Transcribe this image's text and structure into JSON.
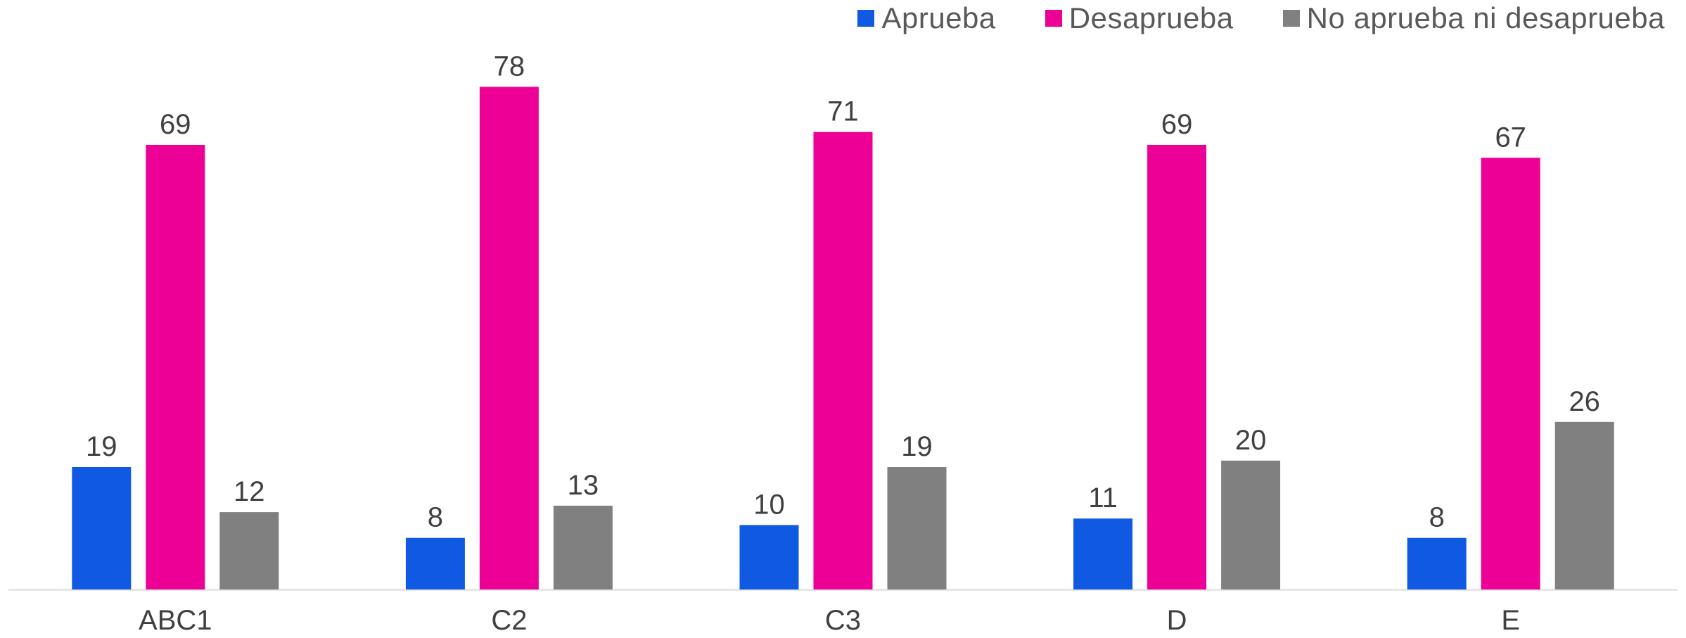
{
  "chart_data": {
    "type": "bar",
    "categories": [
      "ABC1",
      "C2",
      "C3",
      "D",
      "E"
    ],
    "series": [
      {
        "name": "Aprueba",
        "color": "#1059E3",
        "values": [
          19,
          8,
          10,
          11,
          8
        ]
      },
      {
        "name": "Desaprueba",
        "color": "#EC0096",
        "values": [
          69,
          78,
          71,
          69,
          67
        ]
      },
      {
        "name": "No aprueba ni desaprueba",
        "color": "#808080",
        "values": [
          12,
          13,
          19,
          20,
          26
        ]
      }
    ],
    "ylim": [
      0,
      85
    ],
    "grid": false,
    "legend_position": "top-right",
    "data_labels": true
  }
}
